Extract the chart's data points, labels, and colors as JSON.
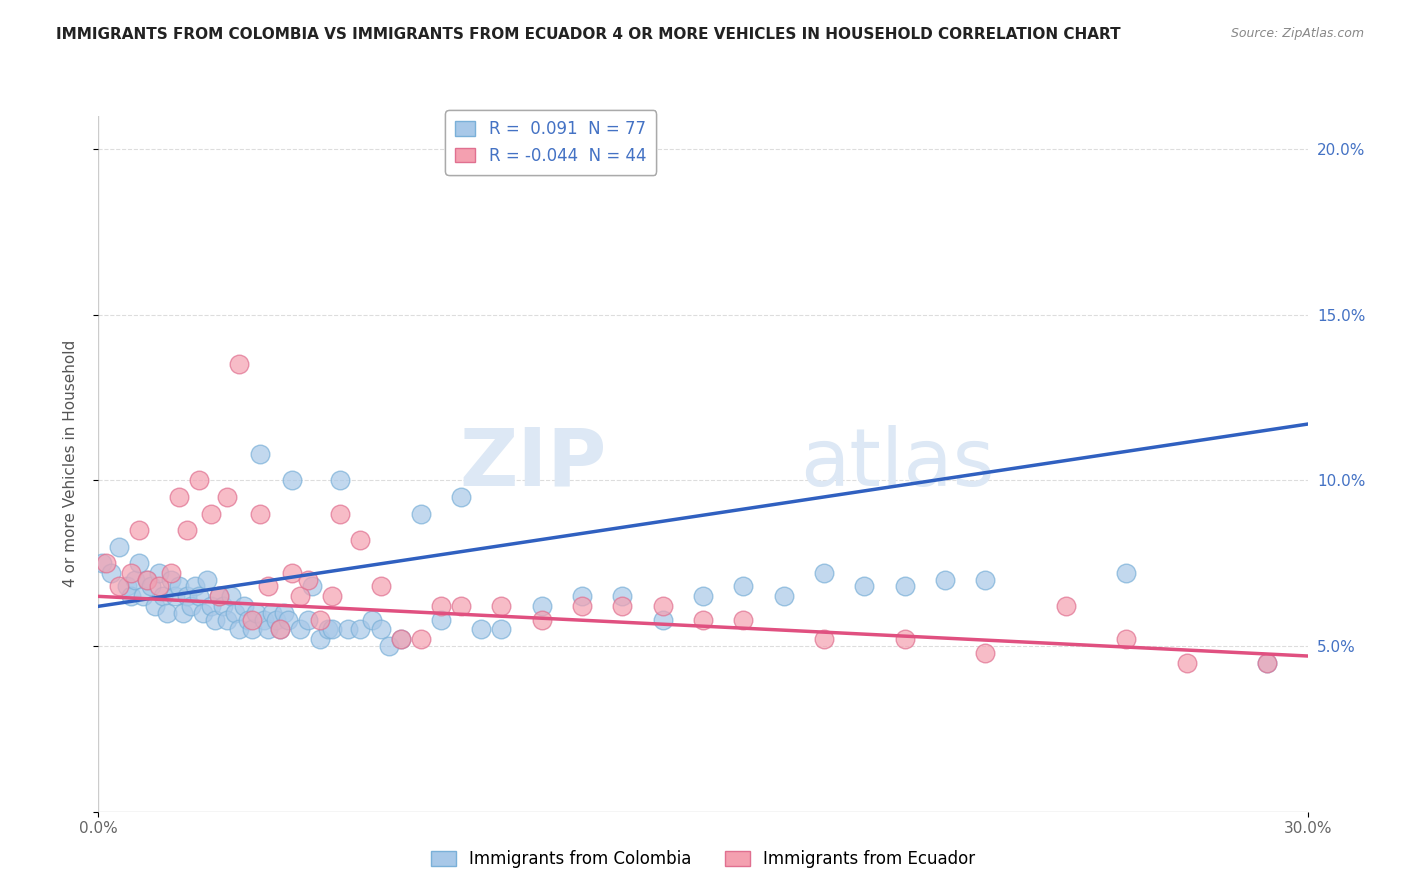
{
  "title": "IMMIGRANTS FROM COLOMBIA VS IMMIGRANTS FROM ECUADOR 4 OR MORE VEHICLES IN HOUSEHOLD CORRELATION CHART",
  "source": "Source: ZipAtlas.com",
  "ylabel": "4 or more Vehicles in Household",
  "xlim": [
    0.0,
    0.3
  ],
  "ylim": [
    0.0,
    0.21
  ],
  "xticks": [
    0.0,
    0.3
  ],
  "xticklabels": [
    "0.0%",
    "30.0%"
  ],
  "yticks_right": [
    0.05,
    0.1,
    0.15,
    0.2
  ],
  "yticklabels_right": [
    "5.0%",
    "10.0%",
    "15.0%",
    "20.0%"
  ],
  "colombia_color": "#a8c8e8",
  "ecuador_color": "#f4a0b0",
  "colombia_line_color": "#3060c0",
  "ecuador_line_color": "#e05080",
  "colombia_R": 0.091,
  "colombia_N": 77,
  "ecuador_R": -0.044,
  "ecuador_N": 44,
  "legend_labels": [
    "Immigrants from Colombia",
    "Immigrants from Ecuador"
  ],
  "watermark_zip": "ZIP",
  "watermark_atlas": "atlas",
  "colombia_scatter_x": [
    0.001,
    0.003,
    0.005,
    0.007,
    0.008,
    0.009,
    0.01,
    0.011,
    0.012,
    0.013,
    0.014,
    0.015,
    0.016,
    0.017,
    0.018,
    0.019,
    0.02,
    0.021,
    0.022,
    0.023,
    0.024,
    0.025,
    0.026,
    0.027,
    0.028,
    0.029,
    0.03,
    0.031,
    0.032,
    0.033,
    0.034,
    0.035,
    0.036,
    0.037,
    0.038,
    0.039,
    0.04,
    0.041,
    0.042,
    0.043,
    0.044,
    0.045,
    0.046,
    0.047,
    0.048,
    0.05,
    0.052,
    0.053,
    0.055,
    0.057,
    0.058,
    0.06,
    0.062,
    0.065,
    0.068,
    0.07,
    0.072,
    0.075,
    0.08,
    0.085,
    0.09,
    0.095,
    0.1,
    0.11,
    0.12,
    0.13,
    0.14,
    0.15,
    0.16,
    0.17,
    0.18,
    0.19,
    0.2,
    0.21,
    0.22,
    0.255,
    0.29
  ],
  "colombia_scatter_y": [
    0.075,
    0.072,
    0.08,
    0.068,
    0.065,
    0.07,
    0.075,
    0.065,
    0.07,
    0.068,
    0.062,
    0.072,
    0.065,
    0.06,
    0.07,
    0.065,
    0.068,
    0.06,
    0.065,
    0.062,
    0.068,
    0.065,
    0.06,
    0.07,
    0.062,
    0.058,
    0.065,
    0.062,
    0.058,
    0.065,
    0.06,
    0.055,
    0.062,
    0.058,
    0.055,
    0.06,
    0.108,
    0.058,
    0.055,
    0.06,
    0.058,
    0.055,
    0.06,
    0.058,
    0.1,
    0.055,
    0.058,
    0.068,
    0.052,
    0.055,
    0.055,
    0.1,
    0.055,
    0.055,
    0.058,
    0.055,
    0.05,
    0.052,
    0.09,
    0.058,
    0.095,
    0.055,
    0.055,
    0.062,
    0.065,
    0.065,
    0.058,
    0.065,
    0.068,
    0.065,
    0.072,
    0.068,
    0.068,
    0.07,
    0.07,
    0.072,
    0.045
  ],
  "ecuador_scatter_x": [
    0.002,
    0.005,
    0.008,
    0.01,
    0.012,
    0.015,
    0.018,
    0.02,
    0.022,
    0.025,
    0.028,
    0.03,
    0.032,
    0.035,
    0.038,
    0.04,
    0.042,
    0.045,
    0.048,
    0.05,
    0.052,
    0.055,
    0.058,
    0.06,
    0.065,
    0.07,
    0.075,
    0.08,
    0.085,
    0.09,
    0.1,
    0.11,
    0.12,
    0.13,
    0.14,
    0.15,
    0.16,
    0.18,
    0.2,
    0.22,
    0.24,
    0.255,
    0.27,
    0.29
  ],
  "ecuador_scatter_y": [
    0.075,
    0.068,
    0.072,
    0.085,
    0.07,
    0.068,
    0.072,
    0.095,
    0.085,
    0.1,
    0.09,
    0.065,
    0.095,
    0.135,
    0.058,
    0.09,
    0.068,
    0.055,
    0.072,
    0.065,
    0.07,
    0.058,
    0.065,
    0.09,
    0.082,
    0.068,
    0.052,
    0.052,
    0.062,
    0.062,
    0.062,
    0.058,
    0.062,
    0.062,
    0.062,
    0.058,
    0.058,
    0.052,
    0.052,
    0.048,
    0.062,
    0.052,
    0.045,
    0.045
  ]
}
